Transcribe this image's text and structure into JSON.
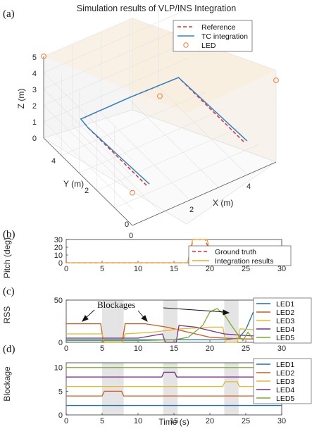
{
  "chart_data": [
    {
      "panel": "(a)",
      "type": "line",
      "title": "Simulation results of VLP/INS Integration",
      "xlabel": "X (m)",
      "ylabel": "Y (m)",
      "zlabel": "Z (m)",
      "x_ticks": [
        "0",
        "2",
        "4"
      ],
      "y_ticks": [
        "0",
        "2",
        "4"
      ],
      "z_ticks": [
        "0",
        "1",
        "2",
        "3",
        "4",
        "5"
      ],
      "xlim": [
        0,
        5
      ],
      "ylim": [
        0,
        5
      ],
      "zlim": [
        0,
        5
      ],
      "legend": [
        "Reference",
        "TC integration",
        "LED"
      ],
      "colors": {
        "reference": "#e03030",
        "tc": "#2f86c8",
        "led": "#e8803a"
      },
      "leds": [
        {
          "x": 0,
          "y": 5,
          "z": 5
        },
        {
          "x": 2.5,
          "y": 2.5,
          "z": 3.3
        },
        {
          "x": 5,
          "y": 5,
          "z": 5
        },
        {
          "x": 0,
          "y": 0,
          "z": 2
        },
        {
          "x": 5,
          "y": 0,
          "z": 5
        }
      ],
      "series": [
        {
          "name": "Reference",
          "x": [
            0.8,
            0.8,
            0.8,
            2.5,
            4.2,
            4.2
          ],
          "y": [
            0.5,
            3.8,
            4.2,
            4.2,
            4.2,
            0.5
          ],
          "z": [
            1.3,
            1.3,
            1.4,
            1.4,
            1.3,
            1.3
          ]
        },
        {
          "name": "TC integration",
          "x": [
            0.9,
            0.8,
            0.8,
            2.5,
            4.2,
            4.3
          ],
          "y": [
            0.5,
            3.8,
            4.2,
            4.2,
            4.2,
            0.5
          ],
          "z": [
            1.3,
            1.3,
            1.4,
            1.4,
            1.3,
            1.3
          ]
        }
      ]
    },
    {
      "panel": "(b)",
      "type": "line",
      "ylabel": "Pitch (deg)",
      "xlim": [
        0,
        30
      ],
      "ylim": [
        0,
        30
      ],
      "x_ticks": [
        "0",
        "5",
        "10",
        "15",
        "20",
        "25",
        "30"
      ],
      "y_ticks": [
        "0",
        "10",
        "20",
        "30"
      ],
      "legend": [
        "Ground truth",
        "Integration results"
      ],
      "colors": {
        "truth": "#e03030",
        "result": "#f0a830"
      },
      "series": [
        {
          "name": "Ground truth",
          "x": [
            0,
            17.2,
            17.6,
            19.0,
            19.4,
            20.4,
            30
          ],
          "y": [
            0,
            0,
            30,
            30,
            30,
            0,
            0
          ]
        },
        {
          "name": "Integration results",
          "x": [
            0,
            16.9,
            17.6,
            19.0,
            19.6,
            20.5,
            30
          ],
          "y": [
            0,
            0,
            30,
            30,
            30,
            0,
            0
          ]
        }
      ]
    },
    {
      "panel": "(c)",
      "type": "line",
      "ylabel": "RSS",
      "xlim": [
        0,
        30
      ],
      "ylim": [
        0,
        50
      ],
      "x_ticks": [
        "0",
        "5",
        "10",
        "15",
        "20",
        "25",
        "30"
      ],
      "y_ticks": [
        "0",
        "50"
      ],
      "annotation": "Blockages",
      "blockages": [
        [
          5,
          8
        ],
        [
          13.5,
          15.5
        ],
        [
          22,
          24
        ]
      ],
      "legend": [
        "LED1",
        "LED2",
        "LED3",
        "LED4",
        "LED5"
      ],
      "series": [
        {
          "name": "LED1",
          "color": "#1f6fb5",
          "x": [
            0,
            20,
            22,
            24,
            25,
            26,
            27,
            30
          ],
          "y": [
            3,
            3,
            3,
            5,
            15,
            35,
            40,
            40
          ]
        },
        {
          "name": "LED2",
          "color": "#d2591e",
          "x": [
            0,
            4.8,
            5.2,
            7.8,
            8.2,
            11,
            14,
            17,
            19,
            20,
            22,
            25,
            27,
            30
          ],
          "y": [
            22,
            22,
            0,
            0,
            22,
            22,
            18,
            12,
            8,
            6,
            5,
            4,
            4,
            4
          ]
        },
        {
          "name": "LED3",
          "color": "#e8b82a",
          "x": [
            0,
            5,
            5.3,
            7.8,
            8.2,
            12,
            14,
            16,
            18,
            20,
            21.8,
            22.2,
            23.8,
            24.2,
            26,
            30
          ],
          "y": [
            10,
            10,
            0,
            0,
            10,
            12,
            14,
            16,
            17,
            18,
            18,
            0,
            0,
            16,
            15,
            15
          ]
        },
        {
          "name": "LED4",
          "color": "#7b2d8e",
          "x": [
            0,
            10,
            13.4,
            13.8,
            15.3,
            15.7,
            18,
            20,
            22,
            25,
            28,
            30
          ],
          "y": [
            5,
            5,
            10,
            0,
            0,
            20,
            18,
            14,
            10,
            8,
            7,
            7
          ]
        },
        {
          "name": "LED5",
          "color": "#77ac30",
          "x": [
            0,
            10,
            15,
            17,
            19,
            20,
            21,
            22,
            23,
            24,
            24.6,
            25.3,
            26,
            28,
            30
          ],
          "y": [
            2,
            2,
            3,
            6,
            20,
            36,
            40,
            33,
            20,
            8,
            2,
            12,
            4,
            3,
            3
          ]
        }
      ]
    },
    {
      "panel": "(d)",
      "type": "line",
      "xlabel": "Time (s)",
      "ylabel": "Blockage",
      "xlim": [
        0,
        30
      ],
      "ylim": [
        0,
        11
      ],
      "x_ticks": [
        "0",
        "5",
        "10",
        "15",
        "20",
        "25",
        "30"
      ],
      "y_ticks": [
        "0",
        "5",
        "10"
      ],
      "blockages": [
        [
          5,
          8
        ],
        [
          13.5,
          15.5
        ],
        [
          22,
          24
        ]
      ],
      "legend": [
        "LED1",
        "LED2",
        "LED3",
        "LED4",
        "LED5"
      ],
      "series": [
        {
          "name": "LED1",
          "color": "#1f6fb5",
          "x": [
            0,
            30
          ],
          "y": [
            2,
            2
          ]
        },
        {
          "name": "LED2",
          "color": "#d2591e",
          "x": [
            0,
            5,
            5.3,
            7.7,
            8,
            30
          ],
          "y": [
            4,
            4,
            5,
            5,
            4,
            4
          ]
        },
        {
          "name": "LED3",
          "color": "#e8b82a",
          "x": [
            0,
            21.8,
            22.1,
            23.8,
            24.1,
            30
          ],
          "y": [
            6,
            6,
            7,
            7,
            6,
            6
          ]
        },
        {
          "name": "LED4",
          "color": "#7b2d8e",
          "x": [
            0,
            13.3,
            13.6,
            15.1,
            15.4,
            30
          ],
          "y": [
            8,
            8,
            9,
            9,
            8,
            8
          ]
        },
        {
          "name": "LED5",
          "color": "#77ac30",
          "x": [
            0,
            30
          ],
          "y": [
            10,
            10
          ]
        }
      ]
    }
  ]
}
